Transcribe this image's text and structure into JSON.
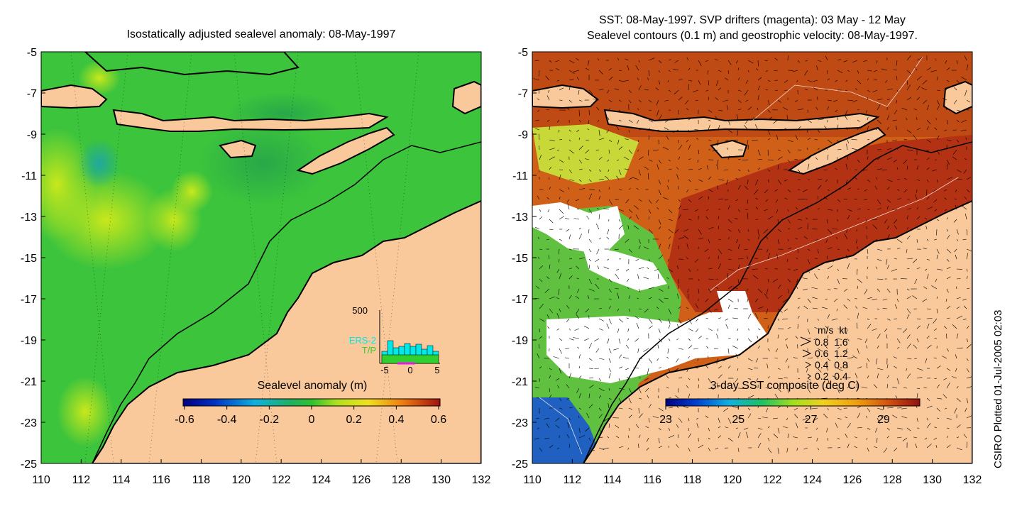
{
  "left_panel": {
    "title": "Isostatically adjusted sealevel anomaly: 08-May-1997",
    "y_ticks": [
      "-5",
      "-7",
      "-9",
      "-11",
      "-13",
      "-15",
      "-17",
      "-19",
      "-21",
      "-23",
      "-25"
    ],
    "x_ticks": [
      "110",
      "112",
      "114",
      "116",
      "118",
      "120",
      "122",
      "124",
      "126",
      "128",
      "130",
      "132"
    ],
    "colorbar": {
      "label": "Sealevel anomaly (m)",
      "ticks": [
        "-0.6",
        "-0.4",
        "-0.2",
        "0",
        "0.2",
        "0.4",
        "0.6"
      ]
    },
    "histogram": {
      "y_top_label": "500",
      "legend_ers2": "ERS-2",
      "legend_tp": "T/P",
      "x_ticks": [
        "-5",
        "0",
        "5"
      ]
    }
  },
  "right_panel": {
    "title_line1": "SST: 08-May-1997. SVP drifters (magenta): 03 May - 12 May",
    "title_line2": "Sealevel contours (0.1 m) and geostrophic velocity: 08-May-1997.",
    "y_ticks": [
      "-5",
      "-7",
      "-9",
      "-11",
      "-13",
      "-15",
      "-17",
      "-19",
      "-21",
      "-23",
      "-25"
    ],
    "x_ticks": [
      "110",
      "112",
      "114",
      "116",
      "118",
      "120",
      "122",
      "124",
      "126",
      "128",
      "130",
      "132"
    ],
    "colorbar": {
      "label": "3-day SST composite (deg C)",
      "ticks": [
        "23",
        "25",
        "27",
        "29"
      ]
    },
    "velocity_legend": {
      "header": "m/s  kt",
      "rows": [
        "0.8  1.6",
        "0.6  1.2",
        "0.4  0.8",
        "0.2  0.4"
      ]
    }
  },
  "credit": "CSIRO Plotted 01-Jul-2005 02:03",
  "colors": {
    "land": "#f9c89b",
    "sea_base": "#3cc43c",
    "sst_warm": "#b43214",
    "sst_mid": "#e07c1c",
    "cloud": "#ffffff",
    "ers2": "#00e8e8",
    "tp": "#30d030",
    "drifters": "#e020e0"
  }
}
